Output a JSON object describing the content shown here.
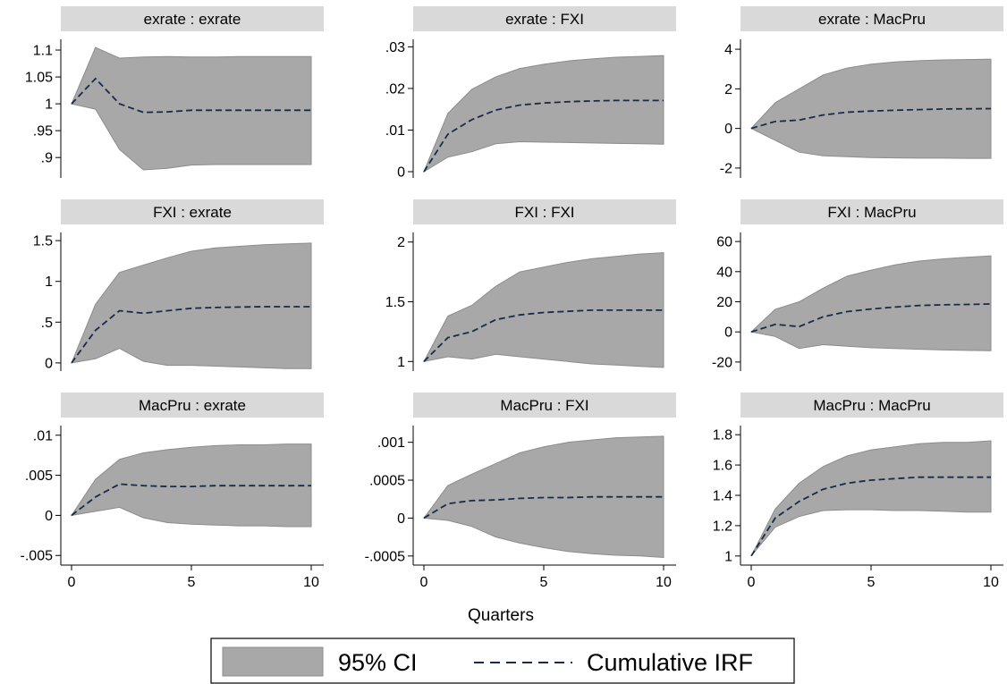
{
  "colors": {
    "band_fill": "#a8a8a8",
    "band_stroke": "#8c8c8c",
    "irf_line": "#1a2a4a",
    "title_strip": "#d9d9d9",
    "background": "#ffffff"
  },
  "figure": {
    "xlabel": "Quarters",
    "legend": {
      "ci_label": "95% CI",
      "irf_label": "Cumulative IRF"
    }
  },
  "chart_data": [
    {
      "type": "area",
      "title": "exrate : exrate",
      "xlim": [
        0,
        10
      ],
      "ylim": [
        0.862,
        1.12
      ],
      "x_ticks": [
        0,
        5,
        10
      ],
      "y_ticks": [
        {
          "v": 0.9,
          "label": ".9"
        },
        {
          "v": 0.95,
          "label": ".95"
        },
        {
          "v": 1.0,
          "label": "1"
        },
        {
          "v": 1.05,
          "label": "1.05"
        },
        {
          "v": 1.1,
          "label": "1.1"
        }
      ],
      "x": [
        0,
        1,
        2,
        3,
        4,
        5,
        6,
        7,
        8,
        9,
        10
      ],
      "series": [
        {
          "role": "irf",
          "values": [
            1.0,
            1.047,
            1.0,
            0.984,
            0.985,
            0.988,
            0.988,
            0.988,
            0.988,
            0.988,
            0.988
          ]
        },
        {
          "role": "lower",
          "values": [
            1.0,
            0.99,
            0.915,
            0.877,
            0.88,
            0.886,
            0.887,
            0.887,
            0.887,
            0.887,
            0.887
          ]
        },
        {
          "role": "upper",
          "values": [
            1.0,
            1.105,
            1.085,
            1.087,
            1.088,
            1.087,
            1.087,
            1.088,
            1.088,
            1.088,
            1.088
          ]
        }
      ]
    },
    {
      "type": "area",
      "title": "exrate : FXI",
      "xlim": [
        0,
        10
      ],
      "ylim": [
        -0.0015,
        0.0318
      ],
      "x_ticks": [
        0,
        5,
        10
      ],
      "y_ticks": [
        {
          "v": 0,
          "label": "0"
        },
        {
          "v": 0.01,
          "label": ".01"
        },
        {
          "v": 0.02,
          "label": ".02"
        },
        {
          "v": 0.03,
          "label": ".03"
        }
      ],
      "x": [
        0,
        1,
        2,
        3,
        4,
        5,
        6,
        7,
        8,
        9,
        10
      ],
      "series": [
        {
          "role": "irf",
          "values": [
            0,
            0.009,
            0.0125,
            0.0148,
            0.016,
            0.0165,
            0.0168,
            0.017,
            0.0171,
            0.0171,
            0.0171
          ]
        },
        {
          "role": "lower",
          "values": [
            0,
            0.0035,
            0.0048,
            0.0067,
            0.0072,
            0.0071,
            0.007,
            0.0069,
            0.0068,
            0.0067,
            0.0066
          ]
        },
        {
          "role": "upper",
          "values": [
            0,
            0.014,
            0.0198,
            0.0228,
            0.0248,
            0.0258,
            0.0266,
            0.0271,
            0.0275,
            0.0277,
            0.0279
          ]
        }
      ]
    },
    {
      "type": "area",
      "title": "exrate : MacPru",
      "xlim": [
        0,
        10
      ],
      "ylim": [
        -2.5,
        4.5
      ],
      "x_ticks": [
        0,
        5,
        10
      ],
      "y_ticks": [
        {
          "v": -2,
          "label": "-2"
        },
        {
          "v": 0,
          "label": "0"
        },
        {
          "v": 2,
          "label": "2"
        },
        {
          "v": 4,
          "label": "4"
        }
      ],
      "x": [
        0,
        1,
        2,
        3,
        4,
        5,
        6,
        7,
        8,
        9,
        10
      ],
      "series": [
        {
          "role": "irf",
          "values": [
            0,
            0.35,
            0.42,
            0.68,
            0.82,
            0.88,
            0.92,
            0.95,
            0.98,
            0.99,
            1.0
          ]
        },
        {
          "role": "lower",
          "values": [
            0,
            -0.6,
            -1.2,
            -1.38,
            -1.43,
            -1.47,
            -1.49,
            -1.5,
            -1.5,
            -1.51,
            -1.51
          ]
        },
        {
          "role": "upper",
          "values": [
            0,
            1.3,
            2.0,
            2.7,
            3.05,
            3.25,
            3.36,
            3.42,
            3.46,
            3.48,
            3.5
          ]
        }
      ]
    },
    {
      "type": "area",
      "title": "FXI : exrate",
      "xlim": [
        0,
        10
      ],
      "ylim": [
        -0.1,
        1.6
      ],
      "x_ticks": [
        0,
        5,
        10
      ],
      "y_ticks": [
        {
          "v": 0,
          "label": "0"
        },
        {
          "v": 0.5,
          "label": ".5"
        },
        {
          "v": 1,
          "label": "1"
        },
        {
          "v": 1.5,
          "label": "1.5"
        }
      ],
      "x": [
        0,
        1,
        2,
        3,
        4,
        5,
        6,
        7,
        8,
        9,
        10
      ],
      "series": [
        {
          "role": "irf",
          "values": [
            0,
            0.4,
            0.64,
            0.61,
            0.64,
            0.67,
            0.68,
            0.685,
            0.69,
            0.69,
            0.69
          ]
        },
        {
          "role": "lower",
          "values": [
            0,
            0.05,
            0.18,
            0.02,
            -0.03,
            -0.03,
            -0.04,
            -0.05,
            -0.06,
            -0.07,
            -0.07
          ]
        },
        {
          "role": "upper",
          "values": [
            0,
            0.72,
            1.11,
            1.2,
            1.29,
            1.37,
            1.41,
            1.43,
            1.45,
            1.46,
            1.47
          ]
        }
      ]
    },
    {
      "type": "area",
      "title": "FXI : FXI",
      "xlim": [
        0,
        10
      ],
      "ylim": [
        0.92,
        2.08
      ],
      "x_ticks": [
        0,
        5,
        10
      ],
      "y_ticks": [
        {
          "v": 1,
          "label": "1"
        },
        {
          "v": 1.5,
          "label": "1.5"
        },
        {
          "v": 2,
          "label": "2"
        }
      ],
      "x": [
        0,
        1,
        2,
        3,
        4,
        5,
        6,
        7,
        8,
        9,
        10
      ],
      "series": [
        {
          "role": "irf",
          "values": [
            1.0,
            1.2,
            1.25,
            1.35,
            1.39,
            1.41,
            1.42,
            1.43,
            1.43,
            1.43,
            1.43
          ]
        },
        {
          "role": "lower",
          "values": [
            1.0,
            1.04,
            1.02,
            1.06,
            1.04,
            1.02,
            1.0,
            0.98,
            0.97,
            0.96,
            0.95
          ]
        },
        {
          "role": "upper",
          "values": [
            1.0,
            1.38,
            1.47,
            1.63,
            1.75,
            1.79,
            1.83,
            1.86,
            1.88,
            1.9,
            1.91
          ]
        }
      ]
    },
    {
      "type": "area",
      "title": "FXI : MacPru",
      "xlim": [
        0,
        10
      ],
      "ylim": [
        -26,
        66
      ],
      "x_ticks": [
        0,
        5,
        10
      ],
      "y_ticks": [
        {
          "v": -20,
          "label": "-20"
        },
        {
          "v": 0,
          "label": "0"
        },
        {
          "v": 20,
          "label": "20"
        },
        {
          "v": 40,
          "label": "40"
        },
        {
          "v": 60,
          "label": "60"
        }
      ],
      "x": [
        0,
        1,
        2,
        3,
        4,
        5,
        6,
        7,
        8,
        9,
        10
      ],
      "series": [
        {
          "role": "irf",
          "values": [
            0,
            5,
            3.5,
            10,
            13.5,
            15.2,
            16.5,
            17.5,
            18,
            18.2,
            18.5
          ]
        },
        {
          "role": "lower",
          "values": [
            0,
            -3,
            -11,
            -8.5,
            -9.5,
            -10.5,
            -11,
            -11.5,
            -12,
            -12.3,
            -12.5
          ]
        },
        {
          "role": "upper",
          "values": [
            0,
            15,
            20,
            29,
            37,
            41,
            44.5,
            47,
            48.5,
            49.5,
            50.5
          ]
        }
      ]
    },
    {
      "type": "area",
      "title": "MacPru : exrate",
      "xlim": [
        0,
        10
      ],
      "ylim": [
        -0.0062,
        0.0112
      ],
      "x_ticks": [
        0,
        5,
        10
      ],
      "y_ticks": [
        {
          "v": -0.005,
          "label": "-.005"
        },
        {
          "v": 0,
          "label": "0"
        },
        {
          "v": 0.005,
          "label": ".005"
        },
        {
          "v": 0.01,
          "label": ".01"
        }
      ],
      "x": [
        0,
        1,
        2,
        3,
        4,
        5,
        6,
        7,
        8,
        9,
        10
      ],
      "series": [
        {
          "role": "irf",
          "values": [
            0,
            0.0023,
            0.0039,
            0.0037,
            0.0036,
            0.0036,
            0.0037,
            0.0037,
            0.0037,
            0.0037,
            0.0037
          ]
        },
        {
          "role": "lower",
          "values": [
            0,
            0.0005,
            0.001,
            -0.0003,
            -0.0009,
            -0.0011,
            -0.0012,
            -0.0013,
            -0.0013,
            -0.0014,
            -0.0014
          ]
        },
        {
          "role": "upper",
          "values": [
            0,
            0.0045,
            0.007,
            0.0078,
            0.0082,
            0.0085,
            0.0087,
            0.0088,
            0.0088,
            0.0089,
            0.0089
          ]
        }
      ]
    },
    {
      "type": "area",
      "title": "MacPru : FXI",
      "xlim": [
        0,
        10
      ],
      "ylim": [
        -0.00062,
        0.00122
      ],
      "x_ticks": [
        0,
        5,
        10
      ],
      "y_ticks": [
        {
          "v": -0.0005,
          "label": "-.0005"
        },
        {
          "v": 0,
          "label": "0"
        },
        {
          "v": 0.0005,
          "label": ".0005"
        },
        {
          "v": 0.001,
          "label": ".001"
        }
      ],
      "x": [
        0,
        1,
        2,
        3,
        4,
        5,
        6,
        7,
        8,
        9,
        10
      ],
      "series": [
        {
          "role": "irf",
          "values": [
            0,
            0.00019,
            0.00023,
            0.00024,
            0.00026,
            0.00027,
            0.00027,
            0.00028,
            0.00028,
            0.00028,
            0.00028
          ]
        },
        {
          "role": "lower",
          "values": [
            0,
            -3e-05,
            -0.00011,
            -0.00025,
            -0.00033,
            -0.00039,
            -0.00044,
            -0.00047,
            -0.00049,
            -0.0005,
            -0.00052
          ]
        },
        {
          "role": "upper",
          "values": [
            0,
            0.00043,
            0.00058,
            0.00072,
            0.00086,
            0.00094,
            0.001,
            0.00103,
            0.00106,
            0.00107,
            0.00108
          ]
        }
      ]
    },
    {
      "type": "area",
      "title": "MacPru : MacPru",
      "xlim": [
        0,
        10
      ],
      "ylim": [
        0.94,
        1.86
      ],
      "x_ticks": [
        0,
        5,
        10
      ],
      "y_ticks": [
        {
          "v": 1,
          "label": "1"
        },
        {
          "v": 1.2,
          "label": "1.2"
        },
        {
          "v": 1.4,
          "label": "1.4"
        },
        {
          "v": 1.6,
          "label": "1.6"
        },
        {
          "v": 1.8,
          "label": "1.8"
        }
      ],
      "x": [
        0,
        1,
        2,
        3,
        4,
        5,
        6,
        7,
        8,
        9,
        10
      ],
      "series": [
        {
          "role": "irf",
          "values": [
            1.0,
            1.25,
            1.36,
            1.44,
            1.48,
            1.5,
            1.51,
            1.52,
            1.52,
            1.52,
            1.52
          ]
        },
        {
          "role": "lower",
          "values": [
            1.0,
            1.19,
            1.26,
            1.3,
            1.305,
            1.305,
            1.3,
            1.3,
            1.295,
            1.29,
            1.29
          ]
        },
        {
          "role": "upper",
          "values": [
            1.0,
            1.31,
            1.48,
            1.59,
            1.66,
            1.7,
            1.72,
            1.74,
            1.75,
            1.75,
            1.76
          ]
        }
      ]
    }
  ]
}
